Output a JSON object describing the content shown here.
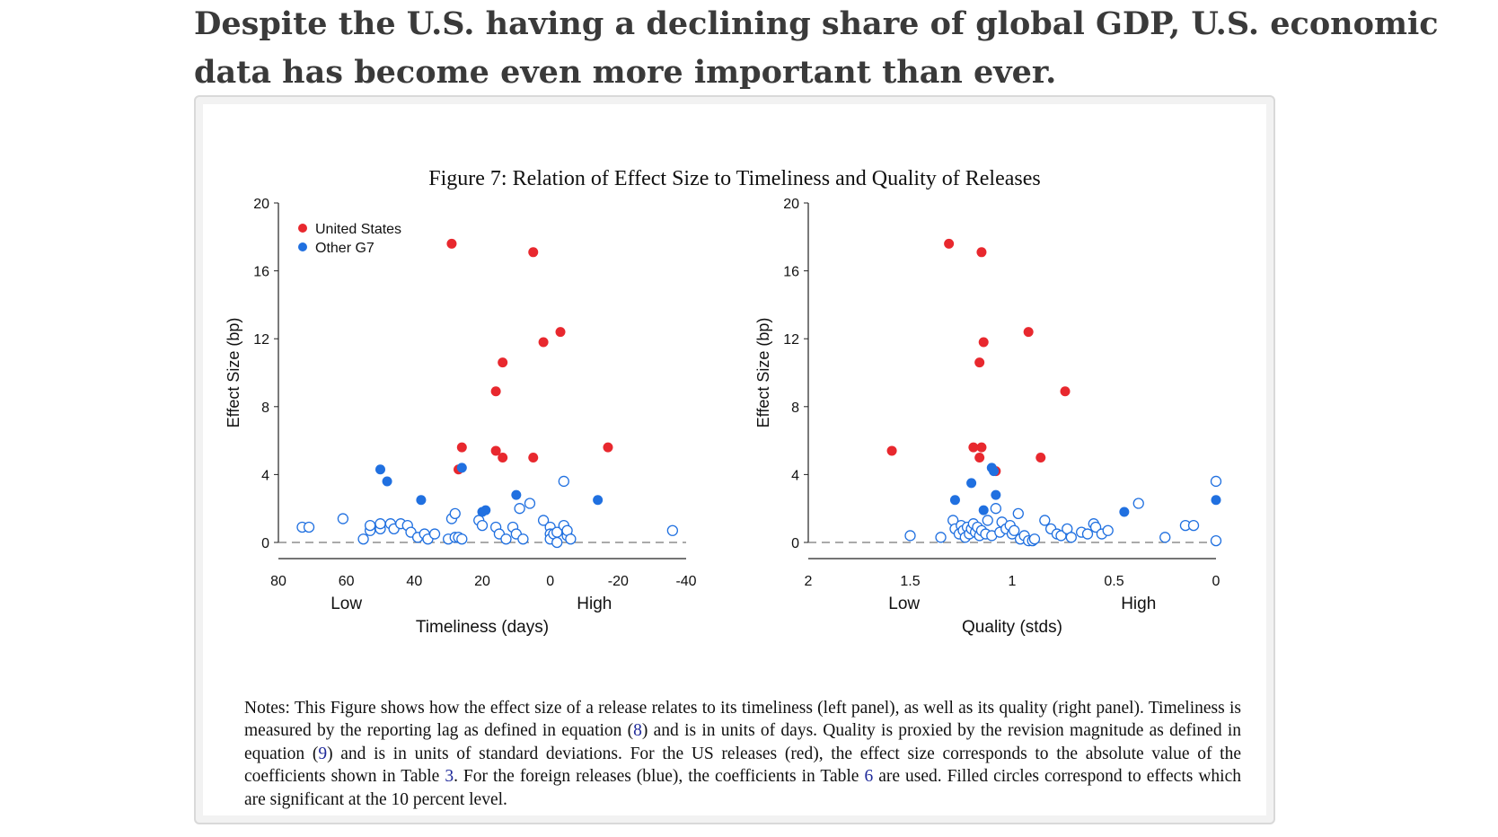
{
  "headline": "Despite the U.S. having a declining share of global GDP, U.S. economic data has become even more important than ever.",
  "figure_title": "Figure 7: Relation of Effect Size to Timeliness and Quality of Releases",
  "notes": {
    "p1": "Notes: This Figure shows how the effect size of a release relates to its timeliness (left panel), as well as its quality (right panel). Timeliness is measured by the reporting lag as defined in equation (",
    "ref1": "8",
    "p2": ") and is in units of days. Quality is proxied by the revision magnitude as defined in equation (",
    "ref2": "9",
    "p3": ") and is in units of standard deviations. For the US releases (red), the effect size corresponds to the absolute value of the coefficients shown in Table ",
    "ref3": "3",
    "p4": ". For the foreign releases (blue), the coefficients in Table ",
    "ref4": "6",
    "p5": " are used. Filled circles correspond to effects which are significant at the 10 percent level."
  },
  "colors": {
    "us": "#e8282e",
    "g7": "#2070e0"
  },
  "chart_data": [
    {
      "type": "scatter",
      "xlabel": "Timeliness (days)",
      "ylabel": "Effect Size (bp)",
      "xlim": [
        80,
        -40
      ],
      "ylim": [
        0,
        20
      ],
      "xticks": [
        80,
        60,
        40,
        20,
        0,
        -20,
        -40
      ],
      "yticks": [
        0,
        4,
        8,
        12,
        16,
        20
      ],
      "x_qualifiers": [
        {
          "label": "Low",
          "at": 60
        },
        {
          "label": "High",
          "at": -13
        }
      ],
      "reference_line_y": 0,
      "legend": {
        "position": "top-left",
        "entries": [
          "United States",
          "Other G7"
        ]
      },
      "series": [
        {
          "name": "United States",
          "color": "#e8282e",
          "filled": true,
          "points": [
            [
              29,
              17.6
            ],
            [
              5,
              17.1
            ],
            [
              -3,
              12.4
            ],
            [
              2,
              11.8
            ],
            [
              14,
              10.6
            ],
            [
              16,
              8.9
            ],
            [
              26,
              5.6
            ],
            [
              16,
              5.4
            ],
            [
              14,
              5.0
            ],
            [
              5,
              5.0
            ],
            [
              -17,
              5.6
            ],
            [
              27,
              4.3
            ]
          ]
        },
        {
          "name": "Other G7",
          "color": "#2070e0",
          "filled": true,
          "points": [
            [
              50,
              4.3
            ],
            [
              48,
              3.6
            ],
            [
              38,
              2.5
            ],
            [
              26,
              4.4
            ],
            [
              20,
              1.8
            ],
            [
              19,
              1.9
            ],
            [
              10,
              2.8
            ],
            [
              -14,
              2.5
            ]
          ]
        },
        {
          "name": "Other G7",
          "color": "#2070e0",
          "filled": false,
          "points": [
            [
              73,
              0.9
            ],
            [
              71,
              0.9
            ],
            [
              61,
              1.4
            ],
            [
              55,
              0.2
            ],
            [
              53,
              0.7
            ],
            [
              53,
              1.0
            ],
            [
              50,
              0.8
            ],
            [
              50,
              1.1
            ],
            [
              47,
              1.1
            ],
            [
              46,
              0.8
            ],
            [
              44,
              1.1
            ],
            [
              42,
              1.0
            ],
            [
              41,
              0.6
            ],
            [
              39,
              0.3
            ],
            [
              37,
              0.5
            ],
            [
              36,
              0.2
            ],
            [
              34,
              0.5
            ],
            [
              30,
              0.2
            ],
            [
              29,
              1.4
            ],
            [
              28,
              1.7
            ],
            [
              28,
              0.3
            ],
            [
              27,
              0.3
            ],
            [
              26,
              0.2
            ],
            [
              21,
              1.3
            ],
            [
              20,
              1.0
            ],
            [
              16,
              0.9
            ],
            [
              15,
              0.5
            ],
            [
              13,
              0.2
            ],
            [
              11,
              0.9
            ],
            [
              10,
              0.5
            ],
            [
              9,
              2.0
            ],
            [
              8,
              0.2
            ],
            [
              6,
              2.3
            ],
            [
              2,
              1.3
            ],
            [
              0,
              0.9
            ],
            [
              0,
              0.5
            ],
            [
              0,
              0.2
            ],
            [
              -1,
              0.5
            ],
            [
              -2,
              0.6
            ],
            [
              -2,
              0.0
            ],
            [
              -4,
              1.0
            ],
            [
              -4,
              3.6
            ],
            [
              -5,
              0.4
            ],
            [
              -5,
              0.7
            ],
            [
              -6,
              0.2
            ],
            [
              -36,
              0.7
            ]
          ]
        }
      ]
    },
    {
      "type": "scatter",
      "xlabel": "Quality (stds)",
      "ylabel": "Effect Size (bp)",
      "xlim": [
        2,
        0
      ],
      "ylim": [
        0,
        20
      ],
      "xticks": [
        2,
        1.5,
        1,
        0.5,
        0
      ],
      "yticks": [
        0,
        4,
        8,
        12,
        16,
        20
      ],
      "x_qualifiers": [
        {
          "label": "Low",
          "at": 1.53
        },
        {
          "label": "High",
          "at": 0.38
        }
      ],
      "reference_line_y": 0,
      "series": [
        {
          "name": "United States",
          "color": "#e8282e",
          "filled": true,
          "points": [
            [
              1.31,
              17.6
            ],
            [
              1.15,
              17.1
            ],
            [
              0.92,
              12.4
            ],
            [
              1.14,
              11.8
            ],
            [
              1.16,
              10.6
            ],
            [
              0.74,
              8.9
            ],
            [
              1.59,
              5.4
            ],
            [
              1.19,
              5.6
            ],
            [
              1.15,
              5.6
            ],
            [
              1.16,
              5.0
            ],
            [
              1.08,
              4.2
            ],
            [
              0.86,
              5.0
            ]
          ]
        },
        {
          "name": "Other G7",
          "color": "#2070e0",
          "filled": true,
          "points": [
            [
              1.1,
              4.4
            ],
            [
              1.09,
              4.2
            ],
            [
              1.2,
              3.5
            ],
            [
              1.28,
              2.5
            ],
            [
              1.08,
              2.8
            ],
            [
              1.14,
              1.9
            ],
            [
              0.45,
              1.8
            ],
            [
              0.0,
              2.5
            ]
          ]
        },
        {
          "name": "Other G7",
          "color": "#2070e0",
          "filled": false,
          "points": [
            [
              1.5,
              0.4
            ],
            [
              1.35,
              0.3
            ],
            [
              1.29,
              1.3
            ],
            [
              1.28,
              0.8
            ],
            [
              1.26,
              0.5
            ],
            [
              1.25,
              1.0
            ],
            [
              1.24,
              0.7
            ],
            [
              1.23,
              0.3
            ],
            [
              1.22,
              0.9
            ],
            [
              1.21,
              0.5
            ],
            [
              1.2,
              0.8
            ],
            [
              1.19,
              1.1
            ],
            [
              1.18,
              0.6
            ],
            [
              1.17,
              0.9
            ],
            [
              1.16,
              0.4
            ],
            [
              1.15,
              0.7
            ],
            [
              1.13,
              0.5
            ],
            [
              1.12,
              1.3
            ],
            [
              1.1,
              0.4
            ],
            [
              1.08,
              2.0
            ],
            [
              1.06,
              0.6
            ],
            [
              1.05,
              1.2
            ],
            [
              1.03,
              0.8
            ],
            [
              1.01,
              1.0
            ],
            [
              1.0,
              0.5
            ],
            [
              0.99,
              0.7
            ],
            [
              0.97,
              1.7
            ],
            [
              0.96,
              0.2
            ],
            [
              0.94,
              0.4
            ],
            [
              0.92,
              0.1
            ],
            [
              0.9,
              0.1
            ],
            [
              0.89,
              0.2
            ],
            [
              0.84,
              1.3
            ],
            [
              0.81,
              0.8
            ],
            [
              0.78,
              0.5
            ],
            [
              0.76,
              0.4
            ],
            [
              0.73,
              0.8
            ],
            [
              0.71,
              0.3
            ],
            [
              0.66,
              0.6
            ],
            [
              0.63,
              0.5
            ],
            [
              0.6,
              1.1
            ],
            [
              0.59,
              0.9
            ],
            [
              0.56,
              0.5
            ],
            [
              0.53,
              0.7
            ],
            [
              0.38,
              2.3
            ],
            [
              0.25,
              0.3
            ],
            [
              0.15,
              1.0
            ],
            [
              0.11,
              1.0
            ],
            [
              0.0,
              3.6
            ],
            [
              0.0,
              0.1
            ]
          ]
        }
      ]
    }
  ]
}
